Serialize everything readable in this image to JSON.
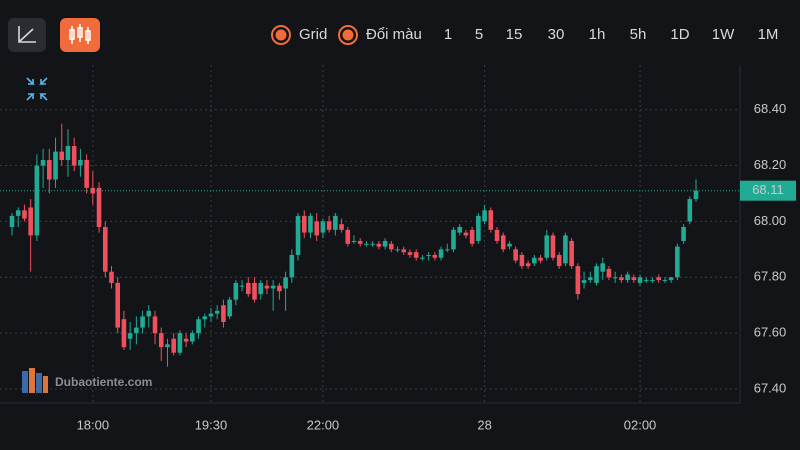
{
  "toolbar": {
    "options": [
      "Grid",
      "Đổi màu"
    ],
    "intervals": [
      "1",
      "5",
      "15",
      "30",
      "1h",
      "5h",
      "1D",
      "1W",
      "1M"
    ],
    "active_interval": 1,
    "accent": "#f26b3a"
  },
  "watermark": "Dubaotiente.com",
  "chart_data": {
    "type": "candlestick",
    "up_color": "#22ab94",
    "down_color": "#f0505e",
    "grid": true,
    "ylim": [
      67.35,
      68.56
    ],
    "yticks": [
      {
        "value": 67.4,
        "label": "67.40"
      },
      {
        "value": 67.6,
        "label": "67.60"
      },
      {
        "value": 67.8,
        "label": "67.80"
      },
      {
        "value": 68,
        "label": "68.00"
      },
      {
        "value": 68.2,
        "label": "68.20"
      },
      {
        "value": 68.4,
        "label": "68.40"
      }
    ],
    "last_price": 68.11,
    "categories": [
      null,
      null,
      null,
      null,
      null,
      null,
      null,
      null,
      null,
      null,
      null,
      null,
      null,
      "18:00",
      null,
      null,
      null,
      null,
      null,
      null,
      null,
      null,
      null,
      null,
      null,
      null,
      null,
      null,
      null,
      null,
      null,
      null,
      "19:30",
      null,
      null,
      null,
      null,
      null,
      null,
      null,
      null,
      null,
      null,
      null,
      null,
      null,
      null,
      null,
      null,
      null,
      "22:00",
      null,
      null,
      null,
      null,
      null,
      null,
      null,
      null,
      null,
      null,
      null,
      null,
      null,
      null,
      null,
      null,
      null,
      null,
      null,
      null,
      null,
      null,
      null,
      null,
      null,
      "28",
      null,
      null,
      null,
      null,
      null,
      null,
      null,
      null,
      null,
      null,
      null,
      null,
      null,
      null,
      null,
      null,
      null,
      null,
      null,
      null,
      null,
      null,
      null,
      null,
      "02:00",
      null,
      null,
      null,
      null,
      null,
      null,
      null,
      null,
      null
    ],
    "candles": [
      [
        67.98,
        68.03,
        67.95,
        68.02
      ],
      [
        68.02,
        68.05,
        67.98,
        68.04
      ],
      [
        68.04,
        68.06,
        68.0,
        68.01
      ],
      [
        68.05,
        68.08,
        67.82,
        67.95
      ],
      [
        67.95,
        68.24,
        67.93,
        68.2
      ],
      [
        68.2,
        68.26,
        68.12,
        68.22
      ],
      [
        68.22,
        68.26,
        68.1,
        68.15
      ],
      [
        68.15,
        68.3,
        68.12,
        68.25
      ],
      [
        68.25,
        68.35,
        68.2,
        68.22
      ],
      [
        68.22,
        68.33,
        68.16,
        68.27
      ],
      [
        68.27,
        68.3,
        68.18,
        68.2
      ],
      [
        68.2,
        68.26,
        68.16,
        68.22
      ],
      [
        68.22,
        68.24,
        68.1,
        68.12
      ],
      [
        68.12,
        68.18,
        68.06,
        68.1
      ],
      [
        68.12,
        68.14,
        67.96,
        67.98
      ],
      [
        67.98,
        68.0,
        67.8,
        67.82
      ],
      [
        67.82,
        67.84,
        67.76,
        67.78
      ],
      [
        67.78,
        67.8,
        67.6,
        67.62
      ],
      [
        67.65,
        67.68,
        67.54,
        67.55
      ],
      [
        67.58,
        67.64,
        67.54,
        67.6
      ],
      [
        67.6,
        67.66,
        67.56,
        67.62
      ],
      [
        67.62,
        67.68,
        67.6,
        67.66
      ],
      [
        67.66,
        67.7,
        67.62,
        67.68
      ],
      [
        67.66,
        67.68,
        67.56,
        67.6
      ],
      [
        67.6,
        67.62,
        67.5,
        67.55
      ],
      [
        67.55,
        67.58,
        67.48,
        67.56
      ],
      [
        67.58,
        67.6,
        67.52,
        67.53
      ],
      [
        67.53,
        67.61,
        67.52,
        67.6
      ],
      [
        67.58,
        67.6,
        67.55,
        67.57
      ],
      [
        67.57,
        67.61,
        67.56,
        67.6
      ],
      [
        67.6,
        67.66,
        67.58,
        67.65
      ],
      [
        67.65,
        67.67,
        67.62,
        67.66
      ],
      [
        67.66,
        67.69,
        67.64,
        67.67
      ],
      [
        67.67,
        67.7,
        67.65,
        67.68
      ],
      [
        67.7,
        67.72,
        67.62,
        67.64
      ],
      [
        67.66,
        67.73,
        67.65,
        67.72
      ],
      [
        67.72,
        67.79,
        67.7,
        67.78
      ],
      [
        67.77,
        67.79,
        67.75,
        67.77
      ],
      [
        67.78,
        67.8,
        67.73,
        67.74
      ],
      [
        67.78,
        67.8,
        67.71,
        67.72
      ],
      [
        67.74,
        67.79,
        67.72,
        67.78
      ],
      [
        67.77,
        67.79,
        67.74,
        67.76
      ],
      [
        67.76,
        67.79,
        67.68,
        67.77
      ],
      [
        67.77,
        67.78,
        67.72,
        67.75
      ],
      [
        67.76,
        67.82,
        67.68,
        67.8
      ],
      [
        67.8,
        67.9,
        67.78,
        67.88
      ],
      [
        67.88,
        68.03,
        67.86,
        68.02
      ],
      [
        68.02,
        68.04,
        67.94,
        67.96
      ],
      [
        67.96,
        68.03,
        67.94,
        68.02
      ],
      [
        68.0,
        68.03,
        67.93,
        67.95
      ],
      [
        67.96,
        68.01,
        67.94,
        68.0
      ],
      [
        68.0,
        68.02,
        67.96,
        67.97
      ],
      [
        67.97,
        68.03,
        67.95,
        68.02
      ],
      [
        67.99,
        68.01,
        67.96,
        67.97
      ],
      [
        67.97,
        67.98,
        67.91,
        67.92
      ],
      [
        67.93,
        67.95,
        67.92,
        67.93
      ],
      [
        67.93,
        67.94,
        67.91,
        67.92
      ],
      [
        67.92,
        67.93,
        67.91,
        67.92
      ],
      [
        67.92,
        67.93,
        67.91,
        67.92
      ],
      [
        67.92,
        67.93,
        67.9,
        67.91
      ],
      [
        67.91,
        67.94,
        67.9,
        67.93
      ],
      [
        67.92,
        67.93,
        67.89,
        67.9
      ],
      [
        67.9,
        67.91,
        67.89,
        67.9
      ],
      [
        67.9,
        67.91,
        67.88,
        67.89
      ],
      [
        67.89,
        67.9,
        67.87,
        67.88
      ],
      [
        67.89,
        67.9,
        67.86,
        67.87
      ],
      [
        67.87,
        67.88,
        67.86,
        67.87
      ],
      [
        67.88,
        67.89,
        67.86,
        67.88
      ],
      [
        67.88,
        67.89,
        67.86,
        67.87
      ],
      [
        67.87,
        67.91,
        67.86,
        67.9
      ],
      [
        67.9,
        67.92,
        67.89,
        67.9
      ],
      [
        67.9,
        67.98,
        67.89,
        67.97
      ],
      [
        67.96,
        67.99,
        67.95,
        67.98
      ],
      [
        67.96,
        67.97,
        67.94,
        67.95
      ],
      [
        67.97,
        67.98,
        67.91,
        67.92
      ],
      [
        67.93,
        68.03,
        67.92,
        68.02
      ],
      [
        68.0,
        68.06,
        67.99,
        68.04
      ],
      [
        68.04,
        68.05,
        67.96,
        67.97
      ],
      [
        67.97,
        67.98,
        67.92,
        67.93
      ],
      [
        67.95,
        67.96,
        67.89,
        67.9
      ],
      [
        67.91,
        67.93,
        67.9,
        67.92
      ],
      [
        67.9,
        67.91,
        67.85,
        67.86
      ],
      [
        67.88,
        67.89,
        67.83,
        67.84
      ],
      [
        67.85,
        67.86,
        67.83,
        67.84
      ],
      [
        67.85,
        67.88,
        67.84,
        67.87
      ],
      [
        67.87,
        67.88,
        67.85,
        67.86
      ],
      [
        67.87,
        67.97,
        67.86,
        67.95
      ],
      [
        67.95,
        67.96,
        67.86,
        67.87
      ],
      [
        67.88,
        67.89,
        67.83,
        67.84
      ],
      [
        67.85,
        67.96,
        67.84,
        67.95
      ],
      [
        67.93,
        67.94,
        67.83,
        67.84
      ],
      [
        67.84,
        67.85,
        67.72,
        67.74
      ],
      [
        67.78,
        67.82,
        67.76,
        67.79
      ],
      [
        67.79,
        67.82,
        67.78,
        67.8
      ],
      [
        67.78,
        67.85,
        67.77,
        67.84
      ],
      [
        67.82,
        67.87,
        67.79,
        67.85
      ],
      [
        67.83,
        67.84,
        67.79,
        67.8
      ],
      [
        67.8,
        67.82,
        67.78,
        67.8
      ],
      [
        67.8,
        67.81,
        67.78,
        67.79
      ],
      [
        67.79,
        67.82,
        67.78,
        67.81
      ],
      [
        67.8,
        67.81,
        67.78,
        67.79
      ],
      [
        67.78,
        67.81,
        67.77,
        67.8
      ],
      [
        67.79,
        67.8,
        67.78,
        67.79
      ],
      [
        67.79,
        67.8,
        67.78,
        67.79
      ],
      [
        67.8,
        67.81,
        67.78,
        67.79
      ],
      [
        67.79,
        67.8,
        67.78,
        67.79
      ],
      [
        67.79,
        67.8,
        67.78,
        67.8
      ],
      [
        67.8,
        67.92,
        67.79,
        67.91
      ],
      [
        67.93,
        67.99,
        67.92,
        67.98
      ],
      [
        68.0,
        68.09,
        67.99,
        68.08
      ],
      [
        68.08,
        68.15,
        68.07,
        68.11
      ]
    ]
  }
}
